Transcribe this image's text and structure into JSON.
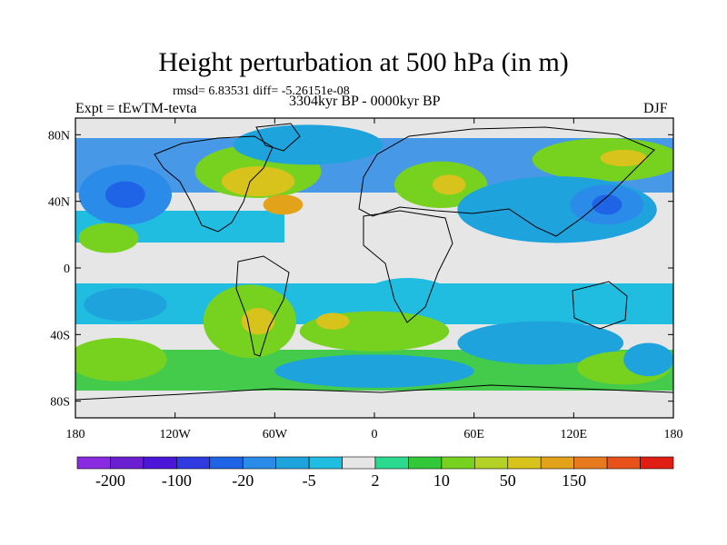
{
  "title": "Height perturbation at 500 hPa (in m)",
  "stats": "rmsd= 6.83531 diff= -5.26151e-08",
  "left_label": "Expt = tEwTM-tevta",
  "center_label": "3304kyr BP - 0000kyr BP",
  "right_label": "DJF",
  "chart_data": {
    "type": "heatmap",
    "variable": "Height perturbation at 500 hPa",
    "units": "m",
    "projection": "cylindrical equidistant, global",
    "x_range": [
      -180,
      180
    ],
    "y_range": [
      -90,
      90
    ],
    "x_ticks": [
      {
        "value": -180,
        "label": "180"
      },
      {
        "value": -120,
        "label": "120W"
      },
      {
        "value": -60,
        "label": "60W"
      },
      {
        "value": 0,
        "label": "0"
      },
      {
        "value": 60,
        "label": "60E"
      },
      {
        "value": 120,
        "label": "120E"
      },
      {
        "value": 180,
        "label": "180"
      }
    ],
    "y_ticks": [
      {
        "value": 80,
        "label": "80N"
      },
      {
        "value": 40,
        "label": "40N"
      },
      {
        "value": 0,
        "label": "0"
      },
      {
        "value": -40,
        "label": "40S"
      },
      {
        "value": -80,
        "label": "80S"
      }
    ],
    "colorbar": {
      "colors": [
        "#8a2be2",
        "#6a1fd0",
        "#4b16d8",
        "#2f3ae0",
        "#1f63e6",
        "#2a8be8",
        "#1fa3dc",
        "#20bde0",
        "#e6e6e6",
        "#2bd98f",
        "#33c83a",
        "#77d21f",
        "#b4d225",
        "#d8c21c",
        "#e2a21a",
        "#e67a1c",
        "#e8521a",
        "#e01e14"
      ],
      "labels": [
        {
          "boundary": 1,
          "text": "-200"
        },
        {
          "boundary": 3,
          "text": "-100"
        },
        {
          "boundary": 5,
          "text": "-20"
        },
        {
          "boundary": 7,
          "text": "-5"
        },
        {
          "boundary": 9,
          "text": "2"
        },
        {
          "boundary": 11,
          "text": "10"
        },
        {
          "boundary": 13,
          "text": "50"
        },
        {
          "boundary": 15,
          "text": "150"
        }
      ]
    },
    "anomaly_regions": [
      {
        "lon": -150,
        "lat": 44,
        "rx": 28,
        "ry": 18,
        "level": 5
      },
      {
        "lon": -150,
        "lat": 44,
        "rx": 12,
        "ry": 8,
        "level": 4
      },
      {
        "lon": -70,
        "lat": 58,
        "rx": 38,
        "ry": 16,
        "level": 11
      },
      {
        "lon": -70,
        "lat": 52,
        "rx": 22,
        "ry": 9,
        "level": 13
      },
      {
        "lon": -55,
        "lat": 38,
        "rx": 12,
        "ry": 6,
        "level": 14
      },
      {
        "lon": -40,
        "lat": 74,
        "rx": 45,
        "ry": 12,
        "level": 6
      },
      {
        "lon": 40,
        "lat": 50,
        "rx": 28,
        "ry": 14,
        "level": 11
      },
      {
        "lon": 45,
        "lat": 50,
        "rx": 10,
        "ry": 6,
        "level": 13
      },
      {
        "lon": 140,
        "lat": 65,
        "rx": 45,
        "ry": 13,
        "level": 11
      },
      {
        "lon": 150,
        "lat": 66,
        "rx": 14,
        "ry": 5,
        "level": 13
      },
      {
        "lon": 110,
        "lat": 35,
        "rx": 60,
        "ry": 20,
        "level": 6
      },
      {
        "lon": 140,
        "lat": 38,
        "rx": 22,
        "ry": 12,
        "level": 5
      },
      {
        "lon": 140,
        "lat": 38,
        "rx": 9,
        "ry": 6,
        "level": 4
      },
      {
        "lon": -160,
        "lat": 18,
        "rx": 18,
        "ry": 9,
        "level": 11
      },
      {
        "lon": -150,
        "lat": -22,
        "rx": 25,
        "ry": 10,
        "level": 6
      },
      {
        "lon": -75,
        "lat": -32,
        "rx": 28,
        "ry": 22,
        "level": 11
      },
      {
        "lon": -70,
        "lat": -32,
        "rx": 10,
        "ry": 8,
        "level": 13
      },
      {
        "lon": -155,
        "lat": -55,
        "rx": 30,
        "ry": 13,
        "level": 11
      },
      {
        "lon": 20,
        "lat": -20,
        "rx": 30,
        "ry": 14,
        "level": 7
      },
      {
        "lon": 0,
        "lat": -38,
        "rx": 45,
        "ry": 12,
        "level": 11
      },
      {
        "lon": -25,
        "lat": -32,
        "rx": 10,
        "ry": 5,
        "level": 13
      },
      {
        "lon": 0,
        "lat": -62,
        "rx": 60,
        "ry": 10,
        "level": 6
      },
      {
        "lon": 100,
        "lat": -45,
        "rx": 50,
        "ry": 13,
        "level": 6
      },
      {
        "lon": 150,
        "lat": -60,
        "rx": 28,
        "ry": 10,
        "level": 11
      },
      {
        "lon": 165,
        "lat": -55,
        "rx": 15,
        "ry": 10,
        "level": 6
      }
    ]
  }
}
